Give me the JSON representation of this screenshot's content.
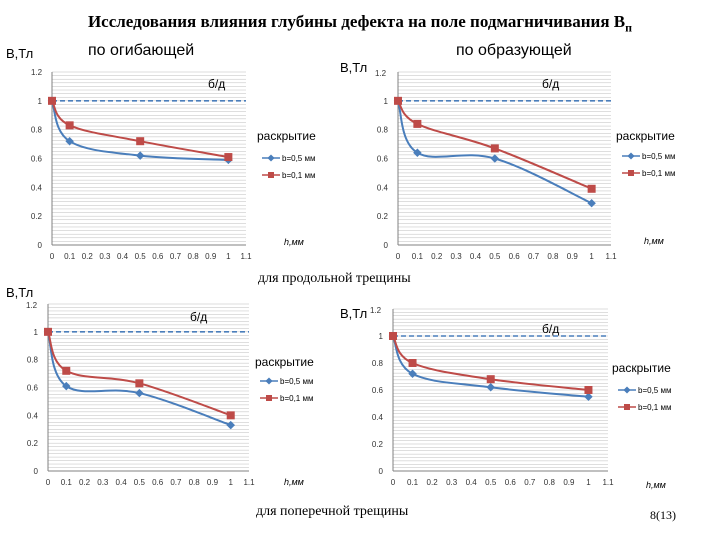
{
  "page": {
    "title": "Исследования влияния глубины дефекта на поле подмагничивания В",
    "title_sub": "п",
    "col_left_heading": "по огибающей",
    "col_right_heading": "по образующей",
    "caption_longitudinal": "для продольной трещины",
    "caption_transverse": "для поперечной трещины",
    "page_number": "8(13)"
  },
  "chart_data": [
    {
      "type": "line",
      "ylabel": "В,Тл",
      "xlabel": "h,мм",
      "defect_label": "б/д",
      "legend_title": "раскрытие",
      "xlim": [
        0,
        1.1
      ],
      "ylim": [
        0,
        1.2
      ],
      "xticks": [
        "0",
        "0.1",
        "0.2",
        "0.3",
        "0.4",
        "0.5",
        "0.6",
        "0.7",
        "0.8",
        "0.9",
        "1",
        "1.1"
      ],
      "yticks": [
        "0",
        "0.2",
        "0.4",
        "0.6",
        "0.8",
        "1",
        "1.2"
      ],
      "baseline": 1,
      "series": [
        {
          "name": "b=0,5 мм",
          "color": "#4a7ebb",
          "marker": "diamond",
          "x": [
            0,
            0.1,
            0.5,
            1
          ],
          "y": [
            1,
            0.72,
            0.62,
            0.59
          ]
        },
        {
          "name": "b=0,1 мм",
          "color": "#be4b48",
          "marker": "square",
          "x": [
            0,
            0.1,
            0.5,
            1
          ],
          "y": [
            1,
            0.83,
            0.72,
            0.61
          ]
        }
      ]
    },
    {
      "type": "line",
      "ylabel": "В,Тл",
      "xlabel": "h,мм",
      "defect_label": "б/д",
      "legend_title": "раскрытие",
      "xlim": [
        0,
        1.1
      ],
      "ylim": [
        0,
        1.2
      ],
      "xticks": [
        "0",
        "0.1",
        "0.2",
        "0.3",
        "0.4",
        "0.5",
        "0.6",
        "0.7",
        "0.8",
        "0.9",
        "1",
        "1.1"
      ],
      "yticks": [
        "0",
        "0.2",
        "0.4",
        "0.6",
        "0.8",
        "1",
        "1.2"
      ],
      "baseline": 1,
      "series": [
        {
          "name": "b=0,5 мм",
          "color": "#4a7ebb",
          "marker": "diamond",
          "x": [
            0,
            0.1,
            0.5,
            1
          ],
          "y": [
            1,
            0.64,
            0.6,
            0.29
          ]
        },
        {
          "name": "b=0,1 мм",
          "color": "#be4b48",
          "marker": "square",
          "x": [
            0,
            0.1,
            0.5,
            1
          ],
          "y": [
            1,
            0.84,
            0.67,
            0.39
          ]
        }
      ]
    },
    {
      "type": "line",
      "ylabel": "В,Тл",
      "xlabel": "h,мм",
      "defect_label": "б/д",
      "legend_title": "раскрытие",
      "xlim": [
        0,
        1.1
      ],
      "ylim": [
        0,
        1.2
      ],
      "xticks": [
        "0",
        "0.1",
        "0.2",
        "0.3",
        "0.4",
        "0.5",
        "0.6",
        "0.7",
        "0.8",
        "0.9",
        "1",
        "1.1"
      ],
      "yticks": [
        "0",
        "0.2",
        "0.4",
        "0.6",
        "0.8",
        "1",
        "1.2"
      ],
      "baseline": 1,
      "series": [
        {
          "name": "b=0,5 мм",
          "color": "#4a7ebb",
          "marker": "diamond",
          "x": [
            0,
            0.1,
            0.5,
            1
          ],
          "y": [
            1,
            0.61,
            0.56,
            0.33
          ]
        },
        {
          "name": "b=0,1 мм",
          "color": "#be4b48",
          "marker": "square",
          "x": [
            0,
            0.1,
            0.5,
            1
          ],
          "y": [
            1,
            0.72,
            0.63,
            0.4
          ]
        }
      ]
    },
    {
      "type": "line",
      "ylabel": "В,Тл",
      "xlabel": "h,мм",
      "defect_label": "б/д",
      "legend_title": "раскрытие",
      "xlim": [
        0,
        1.1
      ],
      "ylim": [
        0,
        1.2
      ],
      "xticks": [
        "0",
        "0.1",
        "0.2",
        "0.3",
        "0.4",
        "0.5",
        "0.6",
        "0.7",
        "0.8",
        "0.9",
        "1",
        "1.1"
      ],
      "yticks": [
        "0",
        "0.2",
        "0.4",
        "0.6",
        "0.8",
        "1",
        "1.2"
      ],
      "baseline": 1,
      "series": [
        {
          "name": "b=0,5 мм",
          "color": "#4a7ebb",
          "marker": "diamond",
          "x": [
            0,
            0.1,
            0.5,
            1
          ],
          "y": [
            1,
            0.72,
            0.62,
            0.55
          ]
        },
        {
          "name": "b=0,1 мм",
          "color": "#be4b48",
          "marker": "square",
          "x": [
            0,
            0.1,
            0.5,
            1
          ],
          "y": [
            1,
            0.8,
            0.68,
            0.6
          ]
        }
      ]
    }
  ]
}
